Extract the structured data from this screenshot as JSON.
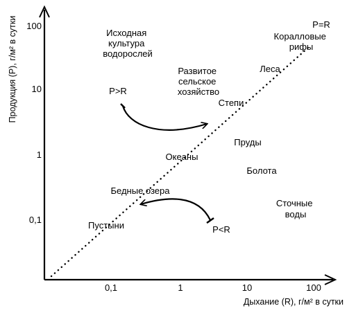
{
  "axes": {
    "x_title": "Дыхание (R), г/м² в сутки",
    "y_title": "Продукция (P), г/м² в сутки",
    "x_ticks": [
      "0,1",
      "1",
      "10",
      "100"
    ],
    "y_ticks": [
      "100",
      "10",
      "1",
      "0,1"
    ],
    "scale": "log"
  },
  "diagonal_label": "P=R",
  "labels": {
    "algae_culture": [
      "Исходная",
      "культура",
      "водорослей"
    ],
    "coral_reefs": [
      "Коралловые",
      "рифы"
    ],
    "forests": "Леса",
    "agriculture": [
      "Развитое",
      "сельское",
      "хозяйство"
    ],
    "steppes": "Степи",
    "ponds": "Пруды",
    "oceans": "Океаны",
    "swamps": "Болота",
    "poor_lakes": "Бедные озера",
    "deserts": "Пустыни",
    "sewage": [
      "Сточные",
      "воды"
    ]
  },
  "arrows": {
    "upper": {
      "label": "P>R"
    },
    "lower": {
      "label": "P<R"
    }
  },
  "colors": {
    "ink": "#000000",
    "background": "#ffffff"
  }
}
